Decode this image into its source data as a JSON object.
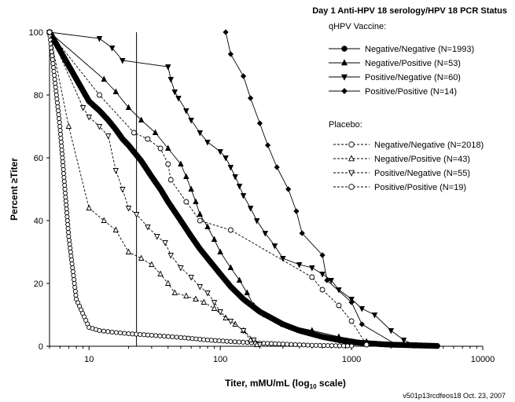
{
  "chart_data": {
    "type": "line",
    "title": "Day 1 Anti-HPV 18 serology/HPV 18 PCR Status",
    "xlabel_main": "Titer, mMU/mL (log",
    "xlabel_sub": "10",
    "xlabel_end": " scale)",
    "ylabel": "Percent ≥Titer",
    "footnote": "v501p13rcdfeos18  Oct. 23, 2007",
    "x_scale": "log",
    "xlim": [
      5,
      10000
    ],
    "ylim": [
      0,
      100
    ],
    "x_ticks": [
      10,
      100,
      1000,
      10000
    ],
    "y_ticks": [
      0,
      20,
      40,
      60,
      80,
      100
    ],
    "reference_line_x": 23,
    "legend_groups": [
      {
        "title": "qHPV Vaccine:",
        "series_indices": [
          0,
          1,
          2,
          3
        ]
      },
      {
        "title": "Placebo:",
        "series_indices": [
          4,
          5,
          6,
          7
        ]
      }
    ],
    "series": [
      {
        "name": "Negative/Negative (N=1993)",
        "marker": "circle",
        "filled": true,
        "dashed": false,
        "points": [
          [
            5,
            100
          ],
          [
            10,
            78
          ],
          [
            12,
            75
          ],
          [
            14,
            72
          ],
          [
            16,
            69
          ],
          [
            18,
            66
          ],
          [
            20,
            64
          ],
          [
            25,
            59
          ],
          [
            30,
            54
          ],
          [
            35,
            50
          ],
          [
            40,
            46
          ],
          [
            50,
            40
          ],
          [
            60,
            35
          ],
          [
            70,
            31
          ],
          [
            80,
            28
          ],
          [
            100,
            23
          ],
          [
            120,
            19
          ],
          [
            150,
            15
          ],
          [
            200,
            11
          ],
          [
            300,
            7
          ],
          [
            400,
            5
          ],
          [
            600,
            3
          ],
          [
            800,
            2
          ],
          [
            1000,
            1.3
          ],
          [
            1500,
            0.8
          ],
          [
            2000,
            0.5
          ],
          [
            3000,
            0.3
          ],
          [
            4500,
            0.1
          ]
        ],
        "marker_mode": "dense"
      },
      {
        "name": "Negative/Positive (N=53)",
        "marker": "triangle-up",
        "filled": true,
        "dashed": false,
        "points": [
          [
            5,
            100
          ],
          [
            13,
            85
          ],
          [
            16,
            81
          ],
          [
            20,
            76
          ],
          [
            25,
            72
          ],
          [
            32,
            68
          ],
          [
            40,
            63
          ],
          [
            50,
            58
          ],
          [
            55,
            54
          ],
          [
            60,
            50
          ],
          [
            65,
            46
          ],
          [
            70,
            42
          ],
          [
            80,
            38
          ],
          [
            90,
            34
          ],
          [
            100,
            30
          ],
          [
            120,
            25
          ],
          [
            140,
            21
          ],
          [
            160,
            17
          ],
          [
            180,
            13
          ],
          [
            220,
            10
          ],
          [
            300,
            7
          ],
          [
            500,
            5
          ],
          [
            800,
            3
          ],
          [
            1300,
            1.5
          ]
        ],
        "marker_mode": "each"
      },
      {
        "name": "Positive/Negative (N=60)",
        "marker": "triangle-down",
        "filled": true,
        "dashed": false,
        "points": [
          [
            5,
            100
          ],
          [
            12,
            98
          ],
          [
            15,
            95
          ],
          [
            18,
            91
          ],
          [
            40,
            89
          ],
          [
            42,
            85
          ],
          [
            45,
            81
          ],
          [
            48,
            79
          ],
          [
            55,
            75
          ],
          [
            60,
            72
          ],
          [
            70,
            68
          ],
          [
            80,
            65
          ],
          [
            100,
            62
          ],
          [
            110,
            60
          ],
          [
            120,
            57
          ],
          [
            130,
            54
          ],
          [
            140,
            51
          ],
          [
            150,
            48
          ],
          [
            170,
            44
          ],
          [
            190,
            40
          ],
          [
            220,
            36
          ],
          [
            260,
            32
          ],
          [
            300,
            28
          ],
          [
            400,
            26
          ],
          [
            500,
            25
          ],
          [
            600,
            23
          ],
          [
            700,
            21
          ],
          [
            800,
            18
          ],
          [
            1000,
            15
          ],
          [
            1200,
            12
          ],
          [
            1500,
            10
          ],
          [
            2000,
            5
          ],
          [
            2500,
            2
          ],
          [
            3000,
            0.5
          ]
        ],
        "marker_mode": "each"
      },
      {
        "name": "Positive/Positive (N=14)",
        "marker": "diamond",
        "filled": true,
        "dashed": false,
        "points": [
          [
            110,
            100
          ],
          [
            120,
            93
          ],
          [
            150,
            86
          ],
          [
            170,
            79
          ],
          [
            200,
            71
          ],
          [
            230,
            64
          ],
          [
            270,
            57
          ],
          [
            330,
            50
          ],
          [
            380,
            43
          ],
          [
            420,
            36
          ],
          [
            600,
            29
          ],
          [
            650,
            21
          ],
          [
            1000,
            14
          ],
          [
            1200,
            7
          ],
          [
            2200,
            0.5
          ]
        ],
        "marker_mode": "each"
      },
      {
        "name": "Negative/Negative (N=2018)",
        "marker": "circle",
        "filled": false,
        "dashed": true,
        "points": [
          [
            5,
            100
          ],
          [
            6,
            70
          ],
          [
            7,
            35
          ],
          [
            8,
            15
          ],
          [
            10,
            6
          ],
          [
            12,
            5
          ],
          [
            15,
            4.5
          ],
          [
            20,
            4
          ],
          [
            30,
            3.5
          ],
          [
            50,
            2.8
          ],
          [
            80,
            2
          ],
          [
            120,
            1.5
          ],
          [
            200,
            1
          ],
          [
            300,
            0.7
          ],
          [
            500,
            0.3
          ],
          [
            1000,
            0.1
          ]
        ],
        "marker_mode": "dense"
      },
      {
        "name": "Negative/Positive (N=43)",
        "marker": "triangle-up",
        "filled": false,
        "dashed": true,
        "points": [
          [
            5,
            100
          ],
          [
            7,
            70
          ],
          [
            10,
            44
          ],
          [
            13,
            40
          ],
          [
            16,
            37
          ],
          [
            20,
            30
          ],
          [
            25,
            28
          ],
          [
            30,
            26
          ],
          [
            35,
            23
          ],
          [
            40,
            20
          ],
          [
            45,
            17
          ],
          [
            55,
            16
          ],
          [
            65,
            15
          ],
          [
            75,
            14
          ],
          [
            90,
            12
          ],
          [
            110,
            9
          ],
          [
            130,
            7
          ],
          [
            150,
            5
          ],
          [
            170,
            2
          ],
          [
            190,
            0.5
          ]
        ],
        "marker_mode": "each"
      },
      {
        "name": "Positive/Negative (N=55)",
        "marker": "triangle-down",
        "filled": false,
        "dashed": true,
        "points": [
          [
            5,
            100
          ],
          [
            9,
            76
          ],
          [
            10,
            73
          ],
          [
            12,
            70
          ],
          [
            14,
            67
          ],
          [
            16,
            56
          ],
          [
            18,
            50
          ],
          [
            20,
            44
          ],
          [
            23,
            42
          ],
          [
            28,
            38
          ],
          [
            33,
            35
          ],
          [
            38,
            33
          ],
          [
            42,
            29
          ],
          [
            50,
            25
          ],
          [
            60,
            22
          ],
          [
            70,
            19
          ],
          [
            80,
            17
          ],
          [
            90,
            14
          ],
          [
            100,
            11
          ],
          [
            120,
            8
          ],
          [
            150,
            5
          ],
          [
            180,
            2
          ],
          [
            200,
            0.5
          ]
        ],
        "marker_mode": "each"
      },
      {
        "name": "Positive/Positive (N=19)",
        "marker": "circle",
        "filled": false,
        "dashed": true,
        "points": [
          [
            5,
            100
          ],
          [
            12,
            80
          ],
          [
            22,
            68
          ],
          [
            28,
            66
          ],
          [
            35,
            63
          ],
          [
            40,
            58
          ],
          [
            42,
            53
          ],
          [
            55,
            46
          ],
          [
            70,
            40
          ],
          [
            120,
            37
          ],
          [
            500,
            22
          ],
          [
            600,
            18
          ],
          [
            800,
            13
          ],
          [
            1000,
            8
          ],
          [
            1300,
            0.5
          ]
        ],
        "marker_mode": "each"
      }
    ]
  }
}
